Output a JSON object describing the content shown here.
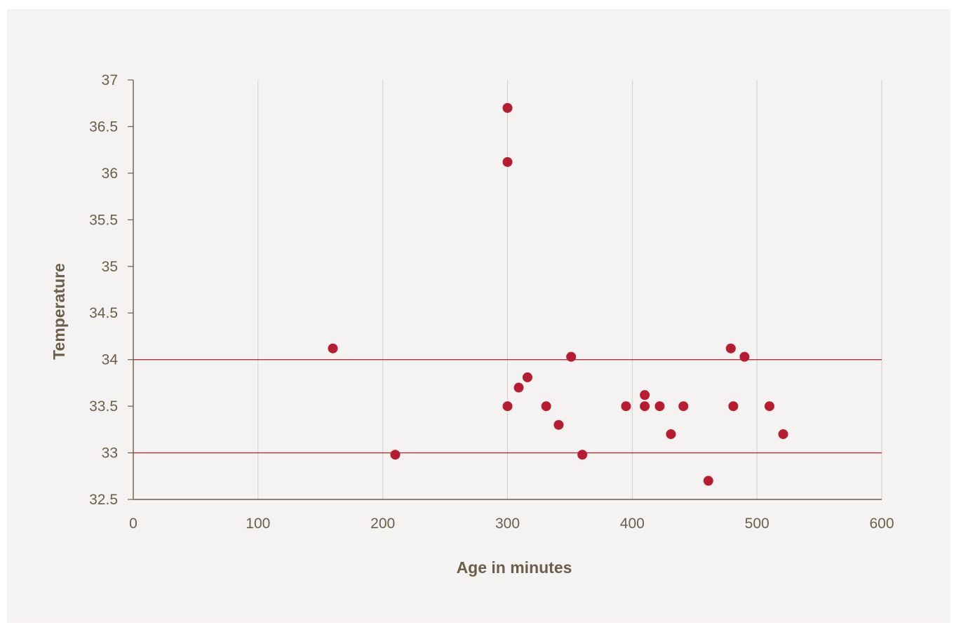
{
  "chart_data": {
    "type": "scatter",
    "title": "",
    "xlabel": "Age in minutes",
    "ylabel": "Temperature",
    "xlim": [
      0,
      600
    ],
    "ylim": [
      32.5,
      37
    ],
    "x_ticks": [
      "0",
      "100",
      "200",
      "300",
      "400",
      "500",
      "600"
    ],
    "y_ticks": [
      "32.5",
      "33",
      "33.5",
      "34",
      "34.5",
      "35",
      "35.5",
      "36",
      "36.5",
      "37"
    ],
    "x_ticks_values": [
      0,
      100,
      200,
      300,
      400,
      500,
      600
    ],
    "y_ticks_values": [
      32.5,
      33,
      33.5,
      34,
      34.5,
      35,
      35.5,
      36,
      36.5,
      37
    ],
    "grid": "vertical",
    "reference_lines": [
      33,
      34
    ],
    "series": [
      {
        "points": [
          {
            "x": 160,
            "y": 34.12
          },
          {
            "x": 210,
            "y": 32.98
          },
          {
            "x": 300,
            "y": 36.7
          },
          {
            "x": 300,
            "y": 36.12
          },
          {
            "x": 300,
            "y": 33.5
          },
          {
            "x": 309,
            "y": 33.7
          },
          {
            "x": 316,
            "y": 33.81
          },
          {
            "x": 331,
            "y": 33.5
          },
          {
            "x": 341,
            "y": 33.3
          },
          {
            "x": 351,
            "y": 34.03
          },
          {
            "x": 360,
            "y": 32.98
          },
          {
            "x": 395,
            "y": 33.5
          },
          {
            "x": 410,
            "y": 33.5
          },
          {
            "x": 410,
            "y": 33.62
          },
          {
            "x": 422,
            "y": 33.5
          },
          {
            "x": 431,
            "y": 33.2
          },
          {
            "x": 441,
            "y": 33.5
          },
          {
            "x": 461,
            "y": 32.7
          },
          {
            "x": 479,
            "y": 34.12
          },
          {
            "x": 481,
            "y": 33.5
          },
          {
            "x": 490,
            "y": 34.03
          },
          {
            "x": 510,
            "y": 33.5
          },
          {
            "x": 521,
            "y": 33.2
          }
        ]
      }
    ],
    "colors": {
      "points": "#b81c30",
      "reference": "#b0303e",
      "grid": "#d3d0cc",
      "axis": "#6b5e4b",
      "background": "#f5f3f1"
    }
  }
}
